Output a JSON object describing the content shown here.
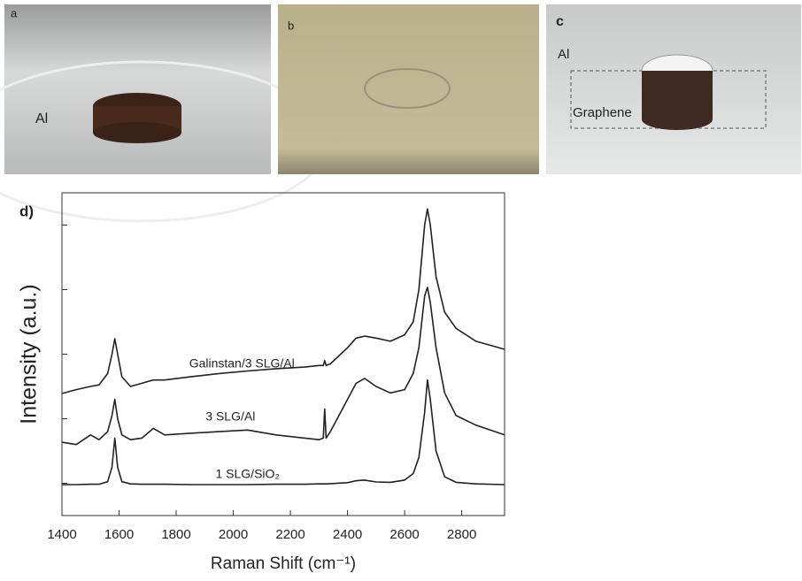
{
  "photos": [
    {
      "label": "a",
      "annotations": [
        "Al"
      ]
    },
    {
      "label": "b"
    },
    {
      "label": "c",
      "annotations": [
        "Al",
        "Graphene"
      ]
    }
  ],
  "chart_data": {
    "type": "line",
    "panel_label": "d)",
    "x_label": "Raman Shift (cm⁻¹)",
    "y_label": "Intensity (a.u.)",
    "x": [
      1400,
      1450,
      1500,
      1530,
      1560,
      1575,
      1585,
      1595,
      1610,
      1640,
      1680,
      1720,
      1760,
      1850,
      1950,
      2050,
      2150,
      2250,
      2300,
      2315,
      2320,
      2325,
      2340,
      2400,
      2430,
      2460,
      2500,
      2550,
      2600,
      2630,
      2650,
      2670,
      2680,
      2690,
      2710,
      2740,
      2780,
      2850,
      2950
    ],
    "series": [
      {
        "name": "Galinstan/3 SLG/Al",
        "color": "#222222",
        "values": [
          37.8,
          39,
          40,
          40.5,
          44,
          50,
          54.8,
          50,
          43,
          40,
          41,
          42,
          42,
          43,
          44,
          44.8,
          45.5,
          46,
          46.5,
          46.5,
          48,
          46.5,
          47,
          52,
          55,
          55.6,
          55,
          54,
          56,
          60,
          70,
          90,
          95,
          90,
          74,
          63,
          58,
          54,
          51.5
        ]
      },
      {
        "name": "3 SLG/Al",
        "color": "#222222",
        "values": [
          22.7,
          22,
          25,
          23.5,
          26,
          31,
          36,
          30,
          25,
          23.5,
          24,
          27,
          25,
          25.5,
          26,
          26.5,
          25,
          24,
          23.5,
          24,
          33,
          24,
          26,
          36,
          41,
          42.5,
          40,
          38,
          39,
          44,
          52,
          68,
          70.7,
          66,
          52,
          38,
          31,
          28,
          25
        ]
      },
      {
        "name": "1 SLG/SiO₂",
        "color": "#222222",
        "values": [
          9.6,
          9.6,
          9.7,
          9.7,
          10.5,
          15,
          24,
          15,
          10.5,
          9.8,
          9.7,
          9.7,
          9.7,
          9.6,
          9.6,
          9.6,
          9.7,
          9.7,
          9.8,
          9.8,
          9.8,
          9.8,
          9.9,
          10.2,
          10.8,
          11,
          10.4,
          10.3,
          11,
          13,
          18,
          32,
          42,
          36,
          20,
          12,
          10.3,
          9.8,
          9.6
        ]
      }
    ],
    "xlim": [
      1400,
      2950
    ],
    "xticks": [
      1400,
      1600,
      1800,
      2000,
      2200,
      2400,
      2600,
      2800
    ],
    "ylim": [
      0,
      100
    ],
    "yticks": [
      10,
      30,
      50,
      70,
      90
    ]
  }
}
